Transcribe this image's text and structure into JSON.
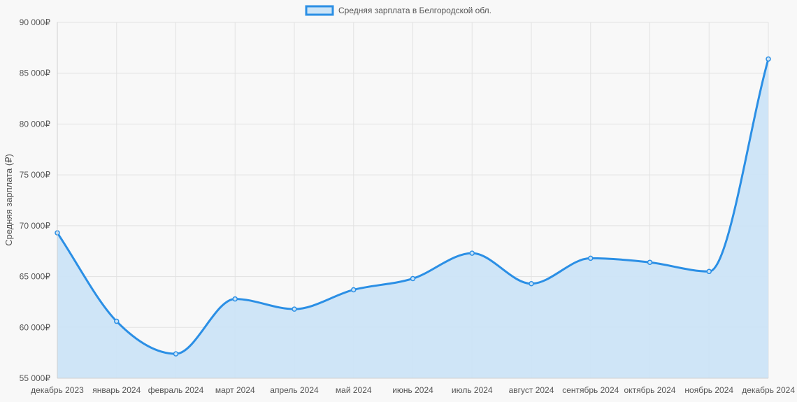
{
  "chart_data": {
    "type": "area",
    "title": "",
    "xlabel": "",
    "ylabel": "Средняя зарплата (₽)",
    "categories": [
      "декабрь 2023",
      "январь 2024",
      "февраль 2024",
      "март 2024",
      "апрель 2024",
      "май 2024",
      "июнь 2024",
      "июль 2024",
      "август 2024",
      "сентябрь 2024",
      "октябрь 2024",
      "ноябрь 2024",
      "декабрь 2024"
    ],
    "series": [
      {
        "name": "Средняя зарплата в Белгородской обл.",
        "values": [
          69300,
          60600,
          57400,
          62800,
          61800,
          63700,
          64800,
          67300,
          64300,
          66800,
          66400,
          65500,
          86400
        ],
        "line_color": "#2b8fe5",
        "fill_color": "#cce4f7"
      }
    ],
    "ylim": [
      55000,
      90000
    ],
    "y_ticks": [
      55000,
      60000,
      65000,
      70000,
      75000,
      80000,
      85000,
      90000
    ],
    "y_tick_labels": [
      "55 000₽",
      "60 000₽",
      "65 000₽",
      "70 000₽",
      "75 000₽",
      "80 000₽",
      "85 000₽",
      "90 000₽"
    ],
    "grid": true,
    "legend_position": "top-center",
    "curve": "smooth",
    "point_markers": true
  }
}
